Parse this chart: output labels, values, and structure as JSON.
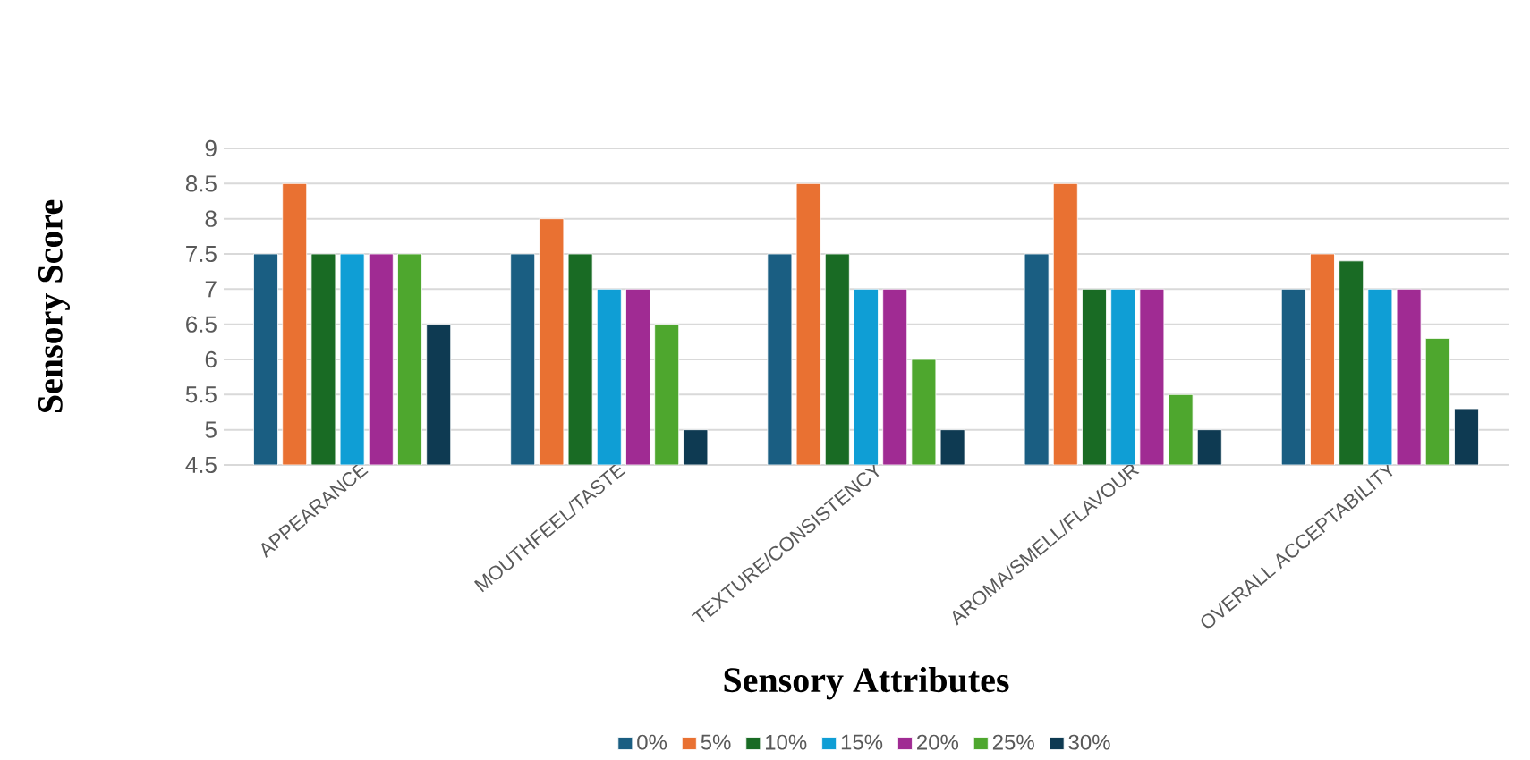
{
  "chart_data": {
    "type": "bar",
    "xlabel": "Sensory Attributes",
    "ylabel": "Sensory Score",
    "categories": [
      "APPEARANCE",
      "MOUTHFEEL/TASTE",
      "TEXTURE/CONSISTENCY",
      "AROMA/SMELL/FLAVOUR",
      "OVERALL ACCEPTABILITY"
    ],
    "series": [
      {
        "name": "0%",
        "color": "#1a5e82",
        "values": [
          7.5,
          7.5,
          7.5,
          7.5,
          7
        ]
      },
      {
        "name": "5%",
        "color": "#e97132",
        "values": [
          8.5,
          8,
          8.5,
          8.5,
          7.5
        ]
      },
      {
        "name": "10%",
        "color": "#196b24",
        "values": [
          7.5,
          7.5,
          7.5,
          7,
          7.4
        ]
      },
      {
        "name": "15%",
        "color": "#0f9ed5",
        "values": [
          7.5,
          7,
          7,
          7,
          7
        ]
      },
      {
        "name": "20%",
        "color": "#a02b93",
        "values": [
          7.5,
          7,
          7,
          7,
          7
        ]
      },
      {
        "name": "25%",
        "color": "#4ea72e",
        "values": [
          7.5,
          6.5,
          6,
          5.5,
          6.3
        ]
      },
      {
        "name": "30%",
        "color": "#0e3a52",
        "values": [
          6.5,
          5,
          5,
          5,
          5.3
        ]
      }
    ],
    "ylim": [
      4.5,
      9
    ],
    "yticks": [
      4.5,
      5,
      5.5,
      6,
      6.5,
      7,
      7.5,
      8,
      8.5,
      9
    ],
    "grid": "y",
    "legend": "bottom"
  }
}
